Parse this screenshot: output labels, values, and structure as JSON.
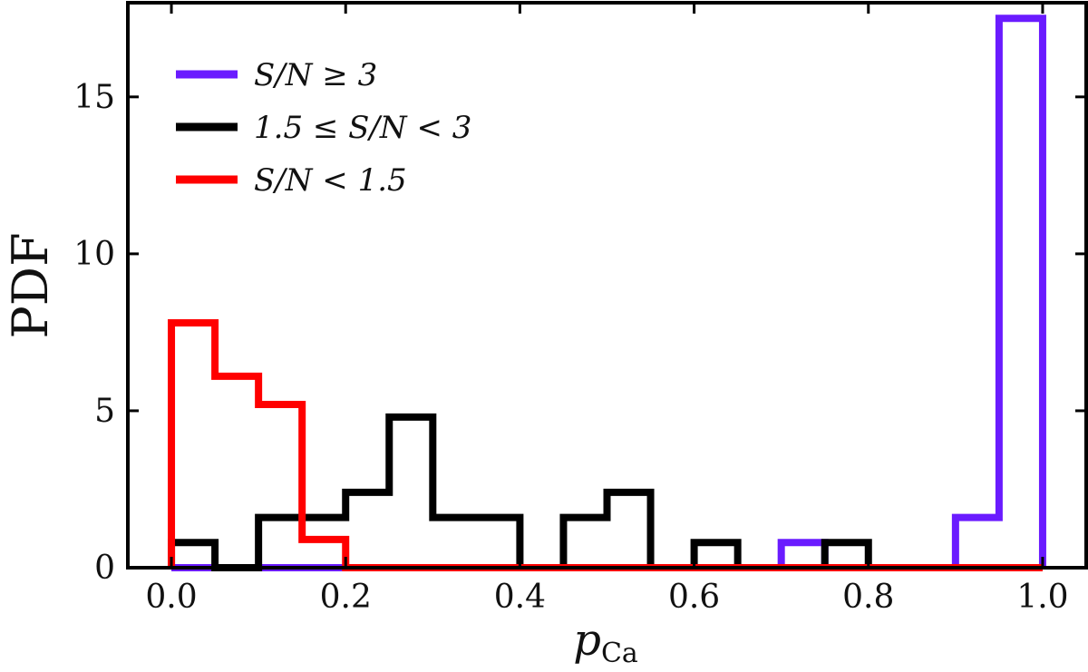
{
  "chart_data": {
    "type": "histogram",
    "title": "",
    "xlabel_main": "p",
    "xlabel_sub": "Ca",
    "ylabel": "PDF",
    "xlim": [
      -0.05,
      1.05
    ],
    "ylim": [
      0,
      18
    ],
    "xticks": [
      0.0,
      0.2,
      0.4,
      0.6,
      0.8,
      1.0
    ],
    "xtick_labels": [
      "0.0",
      "0.2",
      "0.4",
      "0.6",
      "0.8",
      "1.0"
    ],
    "yticks": [
      0,
      5,
      10,
      15
    ],
    "ytick_labels": [
      "0",
      "5",
      "10",
      "15"
    ],
    "bin_edges": [
      0.0,
      0.05,
      0.1,
      0.15,
      0.2,
      0.25,
      0.3,
      0.35,
      0.4,
      0.45,
      0.5,
      0.55,
      0.6,
      0.65,
      0.7,
      0.75,
      0.8,
      0.85,
      0.9,
      0.95,
      1.0
    ],
    "legend_position": "upper-left",
    "series": [
      {
        "name": "S/N ≥ 3",
        "color": "#6a1bff",
        "values": [
          0,
          0,
          0,
          0,
          0,
          0,
          0,
          0,
          0,
          0,
          0,
          0,
          0,
          0,
          0.8,
          0,
          0,
          0,
          1.6,
          17.5
        ]
      },
      {
        "name": "1.5 ≤ S/N < 3",
        "color": "#000000",
        "values": [
          0.8,
          0,
          1.6,
          1.6,
          2.4,
          4.8,
          1.6,
          1.6,
          0,
          1.6,
          2.4,
          0,
          0.8,
          0,
          0,
          0.8,
          0,
          0,
          0,
          0
        ]
      },
      {
        "name": "S/N < 1.5",
        "color": "#ff0000",
        "values": [
          7.8,
          6.1,
          5.2,
          0.9,
          0,
          0,
          0,
          0,
          0,
          0,
          0,
          0,
          0,
          0,
          0,
          0,
          0,
          0,
          0,
          0
        ]
      }
    ]
  }
}
